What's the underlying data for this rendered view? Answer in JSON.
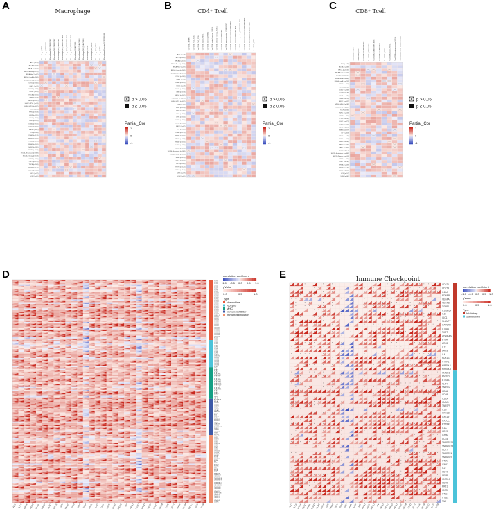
{
  "panels": [
    {
      "label": "A",
      "title": "Macrophage"
    },
    {
      "label": "B",
      "title": "CD4⁺ Tcell"
    },
    {
      "label": "C",
      "title": "CD8⁺ Tcell"
    },
    {
      "label": "D",
      "title": ""
    },
    {
      "label": "E",
      "title": "Immune Checkpoint"
    }
  ],
  "legend_abc": {
    "ns": "p > 0.05",
    "sig": "p ≤ 0.05",
    "title": "Partial_Cor",
    "ticks": [
      "1",
      "0",
      "-1"
    ]
  },
  "legend_d": {
    "title": "correlation coefficient",
    "ticks": [
      "-1.0",
      "-0.5",
      "0.0",
      "0.5",
      "1.0"
    ],
    "ptitle": "pValue",
    "pticks": [
      "0.0",
      "0.5",
      "1.0"
    ],
    "type_title": "Type",
    "types": [
      {
        "name": "chemokine",
        "color": "#e85a3c"
      },
      {
        "name": "receptor",
        "color": "#4cc3d9"
      },
      {
        "name": "MHC",
        "color": "#16a085"
      },
      {
        "name": "Immunoinhibitor",
        "color": "#3d5aa8"
      },
      {
        "name": "Immunostimulator",
        "color": "#f0916e"
      }
    ]
  },
  "legend_e": {
    "title": "correlation coefficient",
    "ticks": [
      "-1.0",
      "-0.5",
      "0.0",
      "0.5",
      "1.0"
    ],
    "ptitle": "pValue",
    "pticks": [
      "0.0",
      "0.5",
      "1.0"
    ],
    "type_title": "Type",
    "types": [
      {
        "name": "Inhibitory",
        "color": "#c0392b"
      },
      {
        "name": "Stimulatory",
        "color": "#4cc3d9"
      }
    ]
  },
  "colors": {
    "pos": "#d7301f",
    "neg": "#3b4cc0",
    "mid": "#fbe5df"
  },
  "chart_data": [
    {
      "type": "heatmap",
      "panel": "A",
      "title": "Macrophage",
      "x": [
        "Macrophage_TIMER",
        "Macrophage_CIBERSORT",
        "Macrophage_M0_CIBERSORT",
        "Macrophage_M1_CIBERSORT",
        "Macrophage_M2_CIBERSORT",
        "Macrophage_M0_CIBERSORT-ABS",
        "Macrophage_M1_CIBERSORT-ABS",
        "Macrophage_M2_CIBERSORT-ABS",
        "Macrophage_QUANTISEQ",
        "Macrophage_M1_QUANTISEQ",
        "Macrophage_M2_QUANTISEQ",
        "Macrophage_XCELL",
        "Macrophage_M1_XCELL",
        "Macrophage_M2_XCELL",
        "Macrophage_EPIC",
        "Macrophage/Monocyte_MCPCOUNTER"
      ],
      "y": [
        "ACC (n=79)",
        "BLCA (n=408)",
        "BRCA (n=1100)",
        "BRCA-Basal (n=191)",
        "BRCA-Her2 (n=82)",
        "BRCA-LumA (n=568)",
        "BRCA-LumB (n=219)",
        "CESC (n=306)",
        "CHOL (n=36)",
        "COAD (n=458)",
        "DLBC (n=48)",
        "ESCA (n=185)",
        "GBM (n=153)",
        "HNSC (n=522)",
        "HNSC-HPV+ (n=98)",
        "HNSC-HPV- (n=422)",
        "KICH (n=66)",
        "KIRC (n=533)",
        "KIRP (n=290)",
        "LGG (n=516)",
        "LIHC (n=371)",
        "LUAD (n=515)",
        "LUSC (n=501)",
        "MESO (n=87)",
        "OV (n=303)",
        "PAAD (n=179)",
        "PCPG (n=181)",
        "PRAD (n=498)",
        "READ (n=166)",
        "SARC (n=260)",
        "SKCM (n=471)",
        "SKCM-Metastasis (n=368)",
        "SKCM-Primary (n=103)",
        "STAD (n=415)",
        "TGCT (n=150)",
        "THCA (n=509)",
        "THYM (n=120)",
        "UCEC (n=545)",
        "UCS (n=57)",
        "UVM (n=80)"
      ],
      "legend": [
        "p > 0.05",
        "p ≤ 0.05"
      ],
      "value_label": "Partial_Cor",
      "value_range": [
        -1,
        1
      ]
    },
    {
      "type": "heatmap",
      "panel": "B",
      "title": "CD4⁺ Tcell",
      "x": [
        "T cell CD4+_TIMER",
        "T cell CD4+ Th1_XCELL",
        "T cell CD4+ Th2_XCELL",
        "T cell CD4+ naive_XCELL",
        "T cell CD4+ memory_XCELL",
        "T cell CD4+ central memory_XCELL",
        "T cell CD4+ effector memory_XCELL",
        "T cell CD4+ naive_CIBERSORT",
        "T cell CD4+ memory resting_CIBERSORT",
        "T cell CD4+ memory activated_CIBERSORT",
        "T cell CD4+ naive_CIBERSORT-ABS",
        "T cell CD4+ memory resting_CIBERSORT-ABS",
        "T cell CD4+ memory activated_CIBERSORT-ABS",
        "T cell CD4+ (non-regulatory)_QUANTISEQ",
        "T cell CD4+_EPIC"
      ],
      "y": [
        "ACC (n=79)",
        "BLCA (n=408)",
        "BRCA (n=1100)",
        "BRCA-Basal (n=191)",
        "BRCA-Her2 (n=82)",
        "BRCA-LumA (n=568)",
        "BRCA-LumB (n=219)",
        "CESC (n=306)",
        "CHOL (n=36)",
        "COAD (n=458)",
        "DLBC (n=48)",
        "ESCA (n=185)",
        "GBM (n=153)",
        "HNSC (n=522)",
        "HNSC-HPV+ (n=98)",
        "HNSC-HPV- (n=422)",
        "KICH (n=66)",
        "KIRC (n=533)",
        "KIRP (n=290)",
        "LGG (n=516)",
        "LIHC (n=371)",
        "LUAD (n=515)",
        "LUSC (n=501)",
        "MESO (n=87)",
        "OV (n=303)",
        "PAAD (n=179)",
        "PCPG (n=181)",
        "PRAD (n=498)",
        "READ (n=166)",
        "SARC (n=260)",
        "SKCM (n=471)",
        "SKCM-Metastasis (n=368)",
        "SKCM-Primary (n=103)",
        "STAD (n=415)",
        "TGCT (n=150)",
        "THCA (n=509)",
        "THYM (n=120)",
        "UCEC (n=545)",
        "UCS (n=57)",
        "UVM (n=80)"
      ],
      "legend": [
        "p > 0.05",
        "p ≤ 0.05"
      ],
      "value_label": "Partial_Cor",
      "value_range": [
        -1,
        1
      ]
    },
    {
      "type": "heatmap",
      "panel": "C",
      "title": "CD8⁺ Tcell",
      "x": [
        "T cell CD8+_TIMER",
        "T cell CD8+_EPIC",
        "T cell CD8+_MCPCOUNTER",
        "T cell CD8+_CIBERSORT",
        "T cell CD8+_CIBERSORT-ABS",
        "T cell CD8+_QUANTISEQ",
        "T cell CD8+_XCELL",
        "T cell CD8+ naive_XCELL",
        "T cell CD8+ central memory_XCELL",
        "T cell CD8+ effector memory_XCELL"
      ],
      "y": [
        "ACC (n=79)",
        "BLCA (n=408)",
        "BRCA (n=1100)",
        "BRCA-Basal (n=191)",
        "BRCA-Her2 (n=82)",
        "BRCA-LumA (n=568)",
        "BRCA-LumB (n=219)",
        "CESC (n=306)",
        "CHOL (n=36)",
        "COAD (n=458)",
        "DLBC (n=48)",
        "ESCA (n=185)",
        "GBM (n=153)",
        "HNSC (n=522)",
        "HNSC-HPV+ (n=98)",
        "HNSC-HPV- (n=422)",
        "KICH (n=66)",
        "KIRC (n=533)",
        "KIRP (n=290)",
        "LGG (n=516)",
        "LIHC (n=371)",
        "LUAD (n=515)",
        "LUSC (n=501)",
        "MESO (n=87)",
        "OV (n=303)",
        "PAAD (n=179)",
        "PCPG (n=181)",
        "PRAD (n=498)",
        "READ (n=166)",
        "SARC (n=260)",
        "SKCM (n=471)",
        "SKCM-Metastasis (n=368)",
        "SKCM-Primary (n=103)",
        "STAD (n=415)",
        "TGCT (n=150)",
        "THCA (n=509)",
        "THYM (n=120)",
        "UCEC (n=545)",
        "UCS (n=57)",
        "UVM (n=80)"
      ],
      "legend": [
        "p > 0.05",
        "p ≤ 0.05"
      ],
      "value_label": "Partial_Cor",
      "value_range": [
        -1,
        1
      ]
    },
    {
      "type": "heatmap",
      "panel": "D",
      "title": "",
      "x": [
        "ACC",
        "BLCA",
        "BRCA",
        "CESC",
        "CHOL",
        "COAD",
        "DLBC",
        "ESCA",
        "GBM",
        "HNSC",
        "KICH",
        "KIRC",
        "KIRP",
        "LAML",
        "LGG",
        "LIHC",
        "LUAD",
        "LUSC",
        "MESO",
        "OV",
        "PAAD",
        "PCPG",
        "PRAD",
        "READ",
        "SARC",
        "SKCM",
        "STAD",
        "TGCT",
        "THCA",
        "THYM",
        "UCEC",
        "UCS",
        "UVM"
      ],
      "y": [
        "CCL1",
        "CCL2",
        "CCL3",
        "CCL4",
        "CCL5",
        "CCL7",
        "CCL8",
        "CCL11",
        "CCL13",
        "CCL14",
        "CCL15",
        "CCL16",
        "CCL17",
        "CCL18",
        "CCL19",
        "CCL20",
        "CCL21",
        "CCL22",
        "CCL24",
        "CCL25",
        "CCL26",
        "CCL27",
        "CCL28",
        "CX3CL1",
        "CXCL1",
        "CXCL2",
        "CXCL3",
        "CXCL5",
        "CXCL6",
        "CXCL8",
        "CXCL9",
        "CXCL10",
        "CXCL11",
        "CXCL12",
        "CXCL13",
        "CXCL14",
        "CXCL16",
        "CXCL17",
        "XCL1",
        "XCL2",
        "CCR1",
        "CCR2",
        "CCR3",
        "CCR4",
        "CCR5",
        "CCR6",
        "CCR7",
        "CCR8",
        "CCR9",
        "CCR10",
        "CX3CR1",
        "CXCR1",
        "CXCR2",
        "CXCR3",
        "CXCR4",
        "CXCR5",
        "CXCR6",
        "XCR1",
        "B2M",
        "HLA-A",
        "HLA-B",
        "HLA-C",
        "HLA-DMA",
        "HLA-DMB",
        "HLA-DOA",
        "HLA-DOB",
        "HLA-DPA1",
        "HLA-DPB1",
        "HLA-DQA1",
        "HLA-DQA2",
        "HLA-DQB1",
        "HLA-DRA",
        "HLA-DRB1",
        "HLA-E",
        "HLA-F",
        "HLA-G",
        "TAP1",
        "TAP2",
        "TAPBP",
        "ADORA2A",
        "BTLA",
        "CD160",
        "CD244",
        "CD274",
        "CD96",
        "CSF1R",
        "CTLA4",
        "HAVCR2",
        "IDO1",
        "IL10",
        "IL10RB",
        "KDR",
        "KIR2DL1",
        "KIR2DL3",
        "LAG3",
        "LGALS9",
        "PDCD1",
        "PDCD1LG2",
        "PVRL2",
        "TGFB1",
        "TGFBR1",
        "TIGIT",
        "VTCN1",
        "C10orf54",
        "CD27",
        "CD276",
        "CD28",
        "CD40",
        "CD40LG",
        "CD48",
        "CD70",
        "CD80",
        "CD86",
        "CXCL12",
        "CXCR4",
        "ENTPD1",
        "HHLA2",
        "ICOS",
        "ICOSLG",
        "IL2RA",
        "IL6",
        "IL6R",
        "KLRC1",
        "KLRK1",
        "LTA",
        "MICB",
        "NT5E",
        "PVR",
        "RAET1E",
        "TMEM173",
        "TMIGD2",
        "TNFRSF13B",
        "TNFRSF13C",
        "TNFRSF14",
        "TNFRSF17",
        "TNFRSF18",
        "TNFRSF25",
        "TNFRSF4",
        "TNFRSF8",
        "TNFRSF9",
        "TNFSF13",
        "TNFSF13B",
        "TNFSF14",
        "TNFSF15",
        "TNFSF18",
        "TNFSF4",
        "TNFSF9",
        "ULBP1"
      ],
      "groups": [
        {
          "name": "chemokine",
          "color": "#e85a3c",
          "count": 40
        },
        {
          "name": "receptor",
          "color": "#4cc3d9",
          "count": 18
        },
        {
          "name": "MHC",
          "color": "#16a085",
          "count": 21
        },
        {
          "name": "Immunoinhibitor",
          "color": "#3d5aa8",
          "count": 24
        },
        {
          "name": "Immunostimulator",
          "color": "#f0916e",
          "count": 45
        }
      ],
      "value_label": "correlation coefficient",
      "value_range": [
        -1,
        1
      ]
    },
    {
      "type": "heatmap",
      "panel": "E",
      "title": "Immune Checkpoint",
      "x": [
        "ACC",
        "BLCA",
        "BRCA",
        "CESC",
        "CHOL",
        "COAD",
        "DLBC",
        "ESCA",
        "GBM",
        "HNSC",
        "KICH",
        "KIRC",
        "KIRP",
        "LAML",
        "LGG",
        "LIHC",
        "LUAD",
        "LUSC",
        "MESO",
        "OV",
        "PAAD",
        "PCPG",
        "PRAD",
        "READ",
        "SARC",
        "SKCM",
        "STAD",
        "TGCT",
        "THCA",
        "THYM",
        "UCEC",
        "UCS",
        "UVM"
      ],
      "y": [
        "CD276",
        "CD274",
        "IL12A",
        "EDNRB",
        "VEGFA",
        "VEGFB",
        "TGFB1",
        "C10orf54",
        "IL10",
        "IDO1",
        "SLAMF7",
        "HAVCR2",
        "CTLA4",
        "TIGIT",
        "ADORA2A",
        "BTLA",
        "ARG1",
        "IL13",
        "LAG3",
        "IL4",
        "PDCD1",
        "VTCN1",
        "KIR2DL1",
        "KIR2DL3",
        "HMGB1",
        "ENTPD1",
        "BTN3A1",
        "TLR4",
        "TNFSF4",
        "CD86",
        "CD28",
        "IL2RA",
        "ICAM1",
        "TNFSF9",
        "IL1B",
        "CXCL10",
        "CXCL9",
        "CX3CL1",
        "BTN3A2",
        "IL1A",
        "CD70",
        "GZMA",
        "CCL5",
        "TNFRSF14",
        "TNFRSF18",
        "CD27",
        "TNFRSF4",
        "TNFRSF9",
        "IFNA1",
        "IFNA2",
        "IL2",
        "CD40",
        "SELP",
        "ICOSLG",
        "CD80",
        "PRF1",
        "ICOS",
        "IFNG",
        "ITGB2",
        "TNF"
      ],
      "groups": [
        {
          "name": "Inhibitory",
          "color": "#c0392b",
          "count": 24
        },
        {
          "name": "Stimulatory",
          "color": "#4cc3d9",
          "count": 36
        }
      ],
      "value_label": "correlation coefficient",
      "value_range": [
        -1,
        1
      ]
    }
  ]
}
